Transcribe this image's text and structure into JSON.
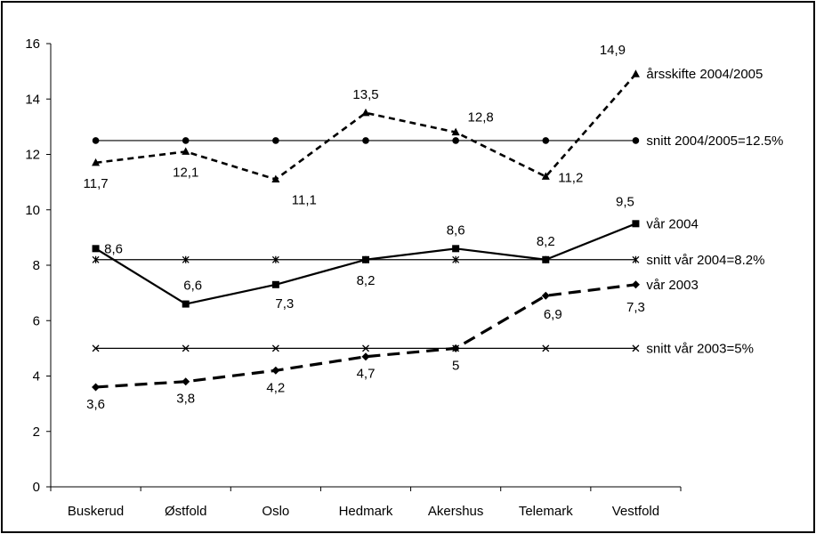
{
  "chart_data": {
    "type": "line",
    "categories": [
      "Buskerud",
      "Østfold",
      "Oslo",
      "Hedmark",
      "Akershus",
      "Telemark",
      "Vestfold"
    ],
    "ylim": [
      0,
      16
    ],
    "y_ticks": [
      "0",
      "2",
      "4",
      "6",
      "8",
      "10",
      "12",
      "14",
      "16"
    ],
    "grid": false,
    "series": [
      {
        "name": "årsskifte 2004/2005",
        "values": [
          11.7,
          12.1,
          11.1,
          13.5,
          12.8,
          11.2,
          14.9
        ],
        "labels": [
          "11,7",
          "12,1",
          "11,1",
          "13,5",
          "12,8",
          "11,2",
          "14,9"
        ],
        "line_style": "dashed",
        "marker": "triangle"
      },
      {
        "name": "snitt 2004/2005=12.5%",
        "values": [
          12.5,
          12.5,
          12.5,
          12.5,
          12.5,
          12.5,
          12.5
        ],
        "line_style": "solid-thin",
        "marker": "circle"
      },
      {
        "name": "vår 2004",
        "values": [
          8.6,
          6.6,
          7.3,
          8.2,
          8.6,
          8.2,
          9.5
        ],
        "labels": [
          "8,6",
          "6,6",
          "7,3",
          "8,2",
          "8,6",
          "8,2",
          "9,5"
        ],
        "line_style": "solid",
        "marker": "square"
      },
      {
        "name": "snitt vår 2004=8.2%",
        "values": [
          8.2,
          8.2,
          8.2,
          8.2,
          8.2,
          8.2,
          8.2
        ],
        "line_style": "solid-thin",
        "marker": "star"
      },
      {
        "name": "vår 2003",
        "values": [
          3.6,
          3.8,
          4.2,
          4.7,
          5,
          6.9,
          7.3
        ],
        "labels": [
          "3,6",
          "3,8",
          "4,2",
          "4,7",
          "5",
          "6,9",
          "7,3"
        ],
        "line_style": "long-dash",
        "marker": "diamond"
      },
      {
        "name": "snitt vår 2003=5%",
        "values": [
          5,
          5,
          5,
          5,
          5,
          5,
          5
        ],
        "line_style": "solid-thin",
        "marker": "x"
      }
    ]
  }
}
